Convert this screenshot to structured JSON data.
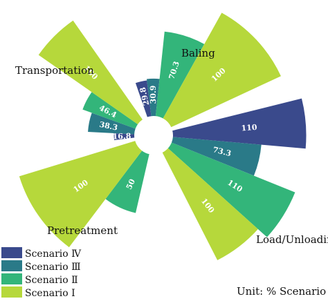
{
  "chart_data": {
    "type": "bar",
    "subtype": "polar-rose",
    "unit_note": "Unit: % Scenario Ⅰ",
    "categories": [
      "Baling",
      "Load/Unloading",
      "Pretreatment",
      "Transportation"
    ],
    "series": [
      {
        "name": "Scenario Ⅳ",
        "color": "#3a4a8c",
        "values": [
          29.8,
          110,
          null,
          16.8
        ]
      },
      {
        "name": "Scenario Ⅲ",
        "color": "#2a7a88",
        "values": [
          30.9,
          73.3,
          null,
          38.3
        ]
      },
      {
        "name": "Scenario Ⅱ",
        "color": "#33b57a",
        "values": [
          70.3,
          110,
          50,
          46.4
        ]
      },
      {
        "name": "Scenario Ⅰ",
        "color": "#b6d83b",
        "values": [
          100,
          100,
          100,
          100
        ]
      }
    ],
    "legend": {
      "position": "bottom-left",
      "order": [
        "Scenario Ⅳ",
        "Scenario Ⅲ",
        "Scenario Ⅱ",
        "Scenario Ⅰ"
      ]
    }
  }
}
